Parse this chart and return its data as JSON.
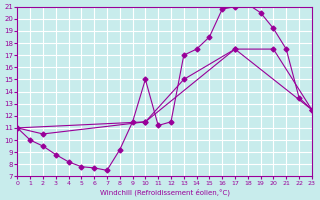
{
  "xlabel": "Windchill (Refroidissement éolien,°C)",
  "bg_color": "#c8ecec",
  "line_color": "#990099",
  "grid_color": "#ffffff",
  "xlim": [
    0,
    23
  ],
  "ylim": [
    7,
    21
  ],
  "xticks": [
    0,
    1,
    2,
    3,
    4,
    5,
    6,
    7,
    8,
    9,
    10,
    11,
    12,
    13,
    14,
    15,
    16,
    17,
    18,
    19,
    20,
    21,
    22,
    23
  ],
  "yticks": [
    7,
    8,
    9,
    10,
    11,
    12,
    13,
    14,
    15,
    16,
    17,
    18,
    19,
    20,
    21
  ],
  "series": [
    [
      0,
      11
    ],
    [
      1,
      10
    ],
    [
      2,
      9.5
    ],
    [
      3,
      8.8
    ],
    [
      4,
      8.2
    ],
    [
      5,
      7.8
    ],
    [
      6,
      7.7
    ],
    [
      7,
      7.5
    ],
    [
      8,
      9.2
    ],
    [
      9,
      11.5
    ],
    [
      10,
      15
    ],
    [
      11,
      11.2
    ],
    [
      12,
      11.5
    ],
    [
      13,
      17
    ],
    [
      14,
      17.5
    ],
    [
      15,
      18.5
    ],
    [
      16,
      20.8
    ],
    [
      17,
      21
    ],
    [
      18,
      21.2
    ],
    [
      19,
      20.5
    ],
    [
      20,
      19.2
    ],
    [
      21,
      17.5
    ],
    [
      22,
      13.5
    ],
    [
      23,
      12.5
    ]
  ],
  "series2": [
    [
      0,
      11
    ],
    [
      2,
      10.5
    ],
    [
      10,
      11.5
    ],
    [
      13,
      15
    ],
    [
      17,
      17.5
    ],
    [
      20,
      17.5
    ],
    [
      23,
      12.5
    ]
  ],
  "series3": [
    [
      0,
      11
    ],
    [
      10,
      11.5
    ],
    [
      17,
      17.5
    ],
    [
      23,
      12.5
    ]
  ]
}
